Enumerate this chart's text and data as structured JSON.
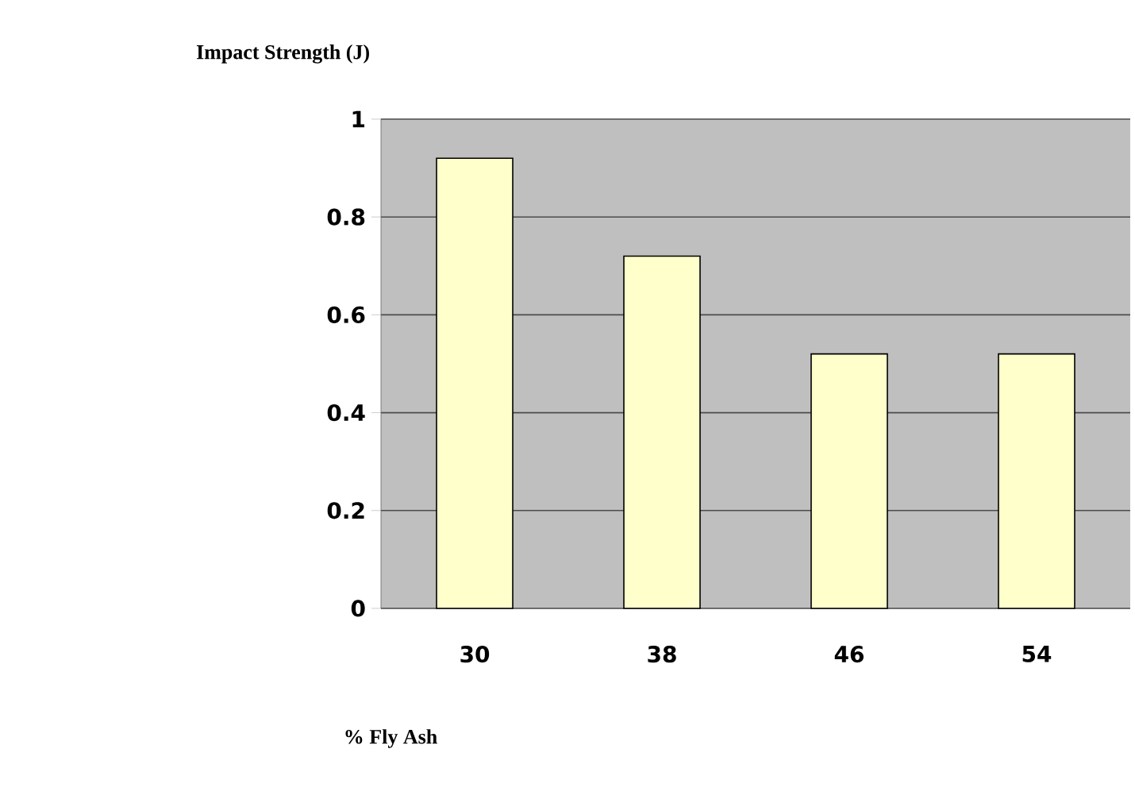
{
  "chart_data": {
    "type": "bar",
    "title": "Impact Strength (J)",
    "xlabel": "% Fly Ash",
    "categories": [
      "30",
      "38",
      "46",
      "54"
    ],
    "values": [
      0.92,
      0.72,
      0.52,
      0.52
    ],
    "color": "#ffffcc",
    "ylim": [
      0,
      1
    ],
    "yticks": [
      0,
      0.2,
      0.4,
      0.6,
      0.8,
      1
    ],
    "grid": "y"
  }
}
